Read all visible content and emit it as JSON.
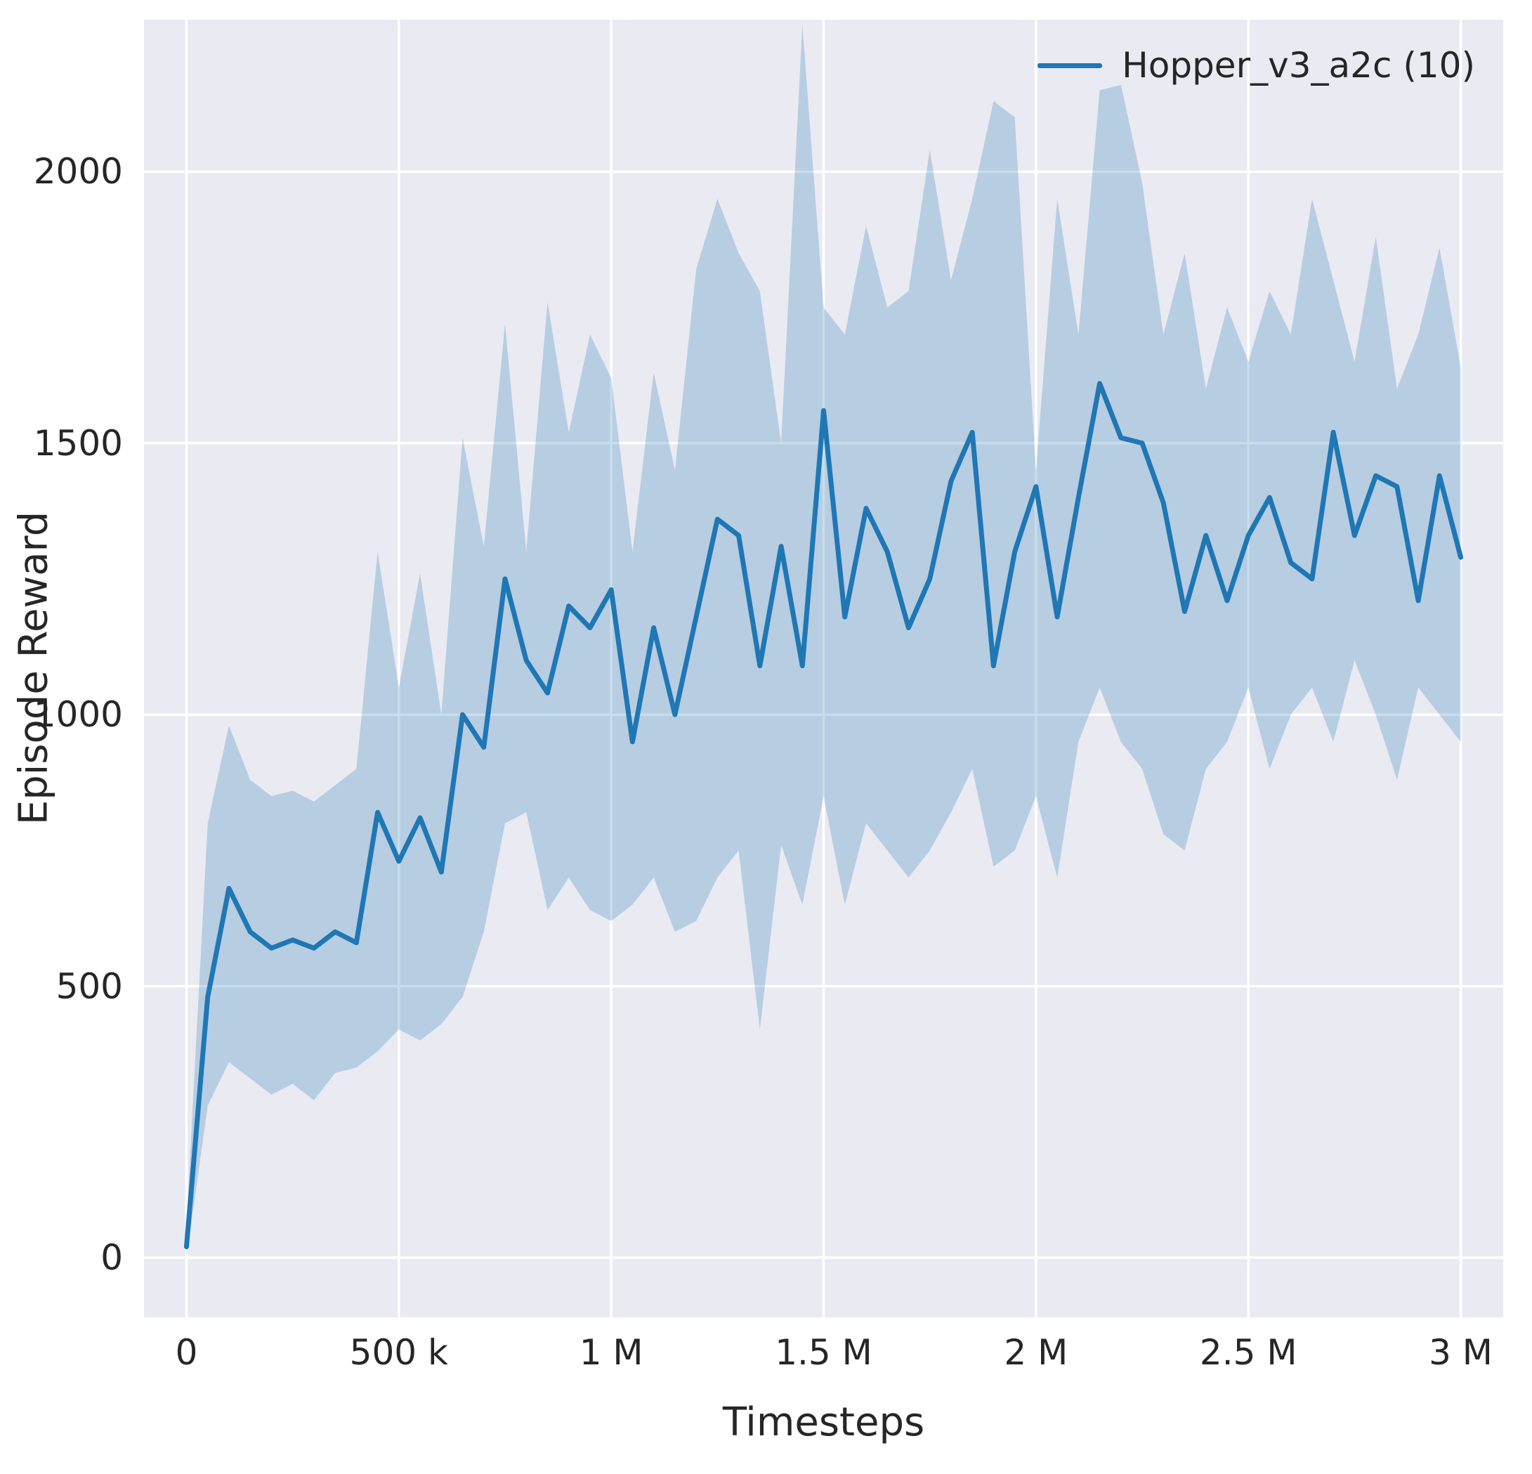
{
  "figure": {
    "background": "#ffffff",
    "axes_background": "#eaeaf2",
    "grid_color": "#ffffff",
    "text_color": "#262626"
  },
  "chart_data": {
    "type": "line",
    "title": "",
    "xlabel": "Timesteps",
    "ylabel": "Episode Reward",
    "grid": true,
    "legend_position": "upper right",
    "legend": [
      {
        "label": "Hopper_v3_a2c (10)",
        "color": "#1f77b4"
      }
    ],
    "xlim": [
      -100000,
      3100000
    ],
    "ylim": [
      -110,
      2280
    ],
    "xticks": [
      0,
      500000,
      1000000,
      1500000,
      2000000,
      2500000,
      3000000
    ],
    "xticklabels": [
      "0",
      "500 k",
      "1 M",
      "1.5 M",
      "2 M",
      "2.5 M",
      "3 M"
    ],
    "yticks": [
      0,
      500,
      1000,
      1500,
      2000
    ],
    "yticklabels": [
      "0",
      "500",
      "1000",
      "1500",
      "2000"
    ],
    "series": [
      {
        "name": "Hopper_v3_a2c (10)",
        "color": "#1f77b4",
        "band_fill": "rgba(31,119,180,0.25)",
        "x": [
          0,
          50000,
          100000,
          150000,
          200000,
          250000,
          300000,
          350000,
          400000,
          450000,
          500000,
          550000,
          600000,
          650000,
          700000,
          750000,
          800000,
          850000,
          900000,
          950000,
          1000000,
          1050000,
          1100000,
          1150000,
          1200000,
          1250000,
          1300000,
          1350000,
          1400000,
          1450000,
          1500000,
          1550000,
          1600000,
          1650000,
          1700000,
          1750000,
          1800000,
          1850000,
          1900000,
          1950000,
          2000000,
          2050000,
          2100000,
          2150000,
          2200000,
          2250000,
          2300000,
          2350000,
          2400000,
          2450000,
          2500000,
          2550000,
          2600000,
          2650000,
          2700000,
          2750000,
          2800000,
          2850000,
          2900000,
          2950000,
          3000000
        ],
        "mean": [
          20,
          480,
          680,
          600,
          570,
          585,
          570,
          600,
          580,
          820,
          730,
          810,
          710,
          1000,
          940,
          1250,
          1100,
          1040,
          1200,
          1160,
          1230,
          950,
          1160,
          1000,
          1180,
          1360,
          1330,
          1090,
          1310,
          1090,
          1560,
          1180,
          1380,
          1300,
          1160,
          1250,
          1430,
          1520,
          1090,
          1300,
          1420,
          1180,
          1400,
          1610,
          1510,
          1500,
          1390,
          1190,
          1330,
          1210,
          1330,
          1400,
          1280,
          1250,
          1520,
          1330,
          1440,
          1420,
          1210,
          1440,
          1290
        ],
        "band_lower": [
          0,
          280,
          360,
          330,
          300,
          320,
          290,
          340,
          350,
          380,
          420,
          400,
          430,
          480,
          600,
          800,
          820,
          640,
          700,
          640,
          620,
          650,
          700,
          600,
          620,
          700,
          750,
          420,
          760,
          650,
          850,
          650,
          800,
          750,
          700,
          750,
          820,
          900,
          720,
          750,
          850,
          700,
          950,
          1050,
          950,
          900,
          780,
          750,
          900,
          950,
          1050,
          900,
          1000,
          1050,
          950,
          1100,
          1000,
          880,
          1050,
          1000,
          950
        ],
        "band_upper": [
          60,
          800,
          980,
          880,
          850,
          860,
          840,
          870,
          900,
          1300,
          1050,
          1260,
          1000,
          1510,
          1310,
          1720,
          1300,
          1760,
          1520,
          1700,
          1620,
          1300,
          1630,
          1450,
          1820,
          1950,
          1850,
          1780,
          1500,
          2270,
          1750,
          1700,
          1900,
          1750,
          1780,
          2040,
          1800,
          1950,
          2130,
          2100,
          1450,
          1950,
          1700,
          2150,
          2160,
          1980,
          1700,
          1850,
          1600,
          1750,
          1650,
          1780,
          1700,
          1950,
          1800,
          1650,
          1880,
          1600,
          1700,
          1860,
          1640
        ]
      }
    ]
  }
}
